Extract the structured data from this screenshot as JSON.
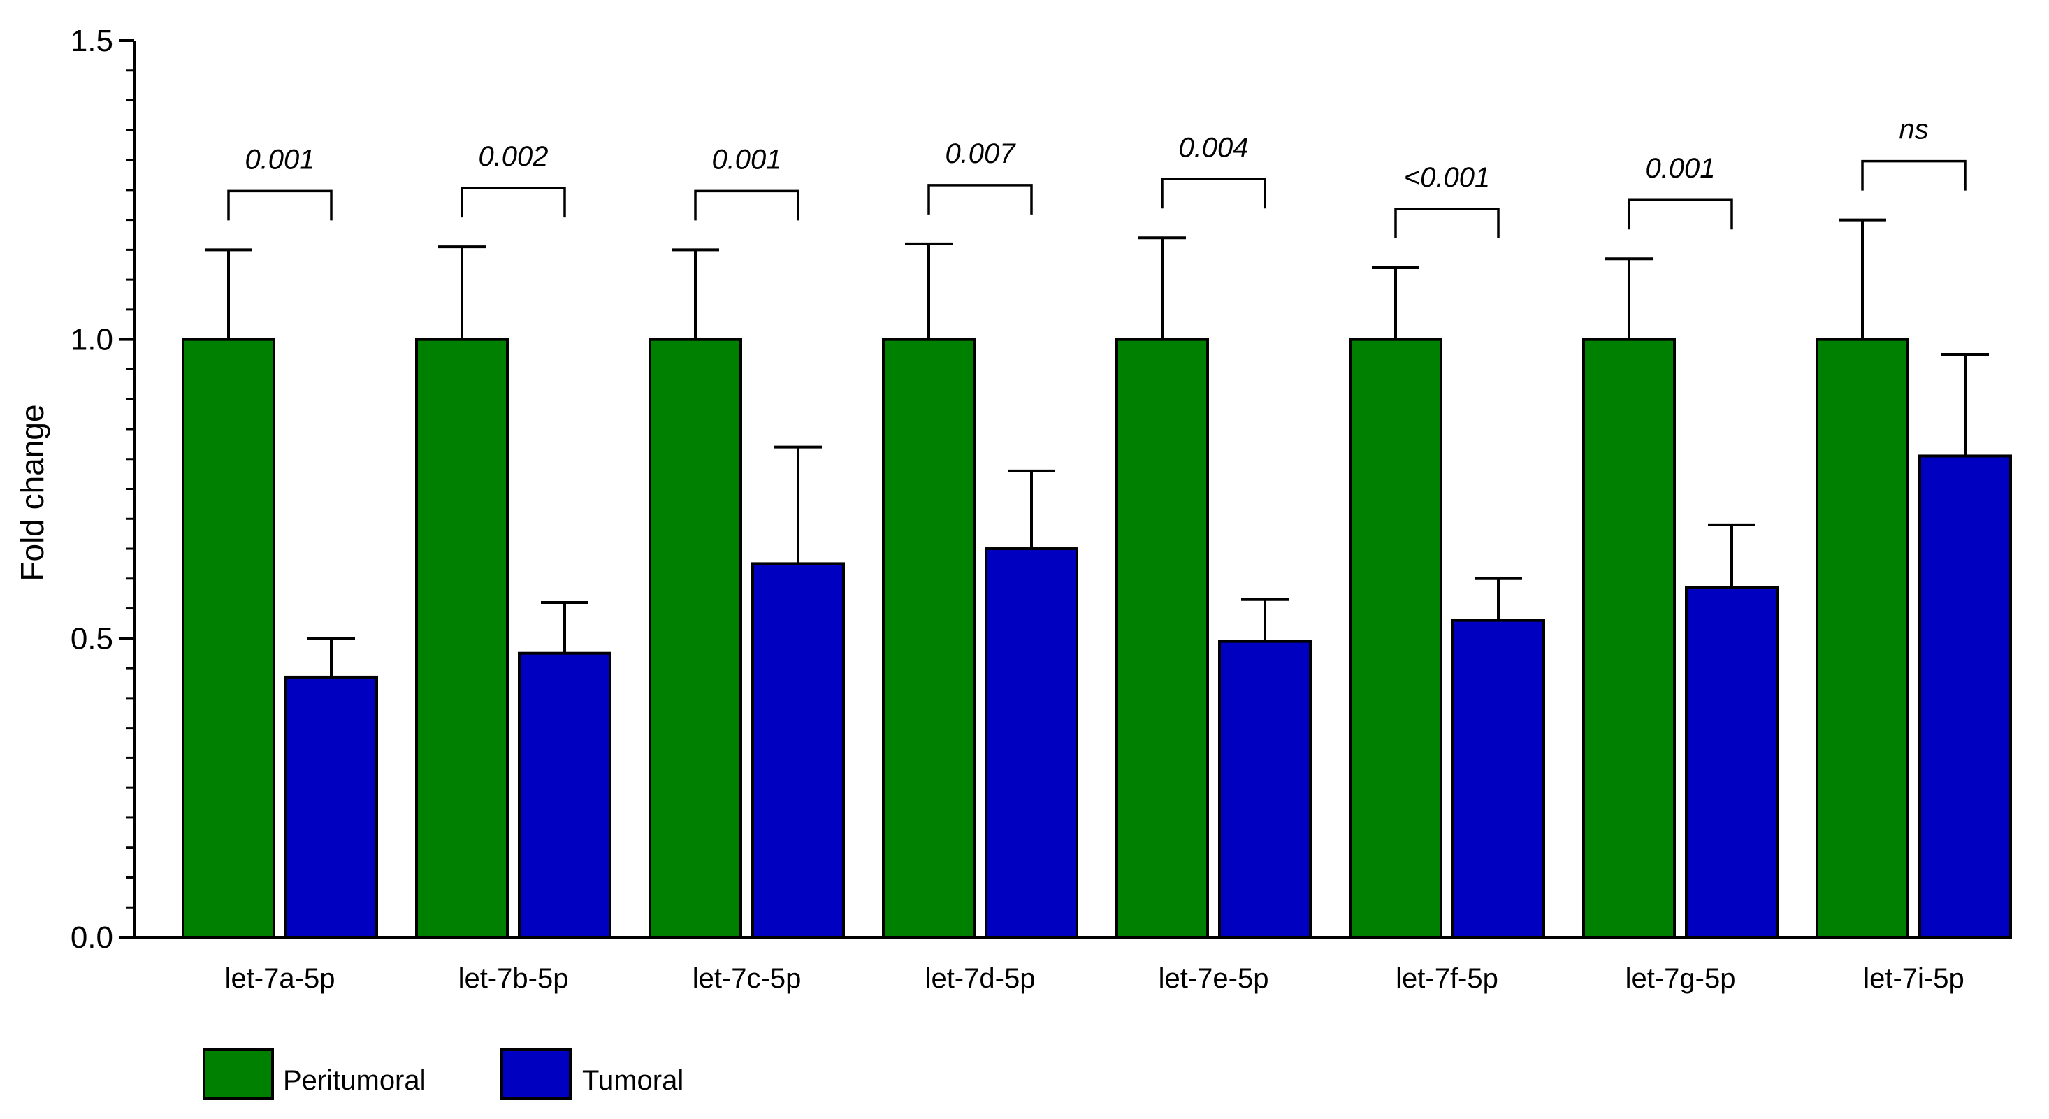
{
  "chart_data": {
    "type": "bar",
    "title": "",
    "xlabel": "",
    "ylabel": "Fold change",
    "ylim": [
      0,
      1.5
    ],
    "yticks": [
      {
        "value": 0.0,
        "label": "0.0"
      },
      {
        "value": 0.5,
        "label": "0.5"
      },
      {
        "value": 1.0,
        "label": "1.0"
      },
      {
        "value": 1.5,
        "label": "1.5"
      }
    ],
    "categories": [
      "let-7a-5p",
      "let-7b-5p",
      "let-7c-5p",
      "let-7d-5p",
      "let-7e-5p",
      "let-7f-5p",
      "let-7g-5p",
      "let-7i-5p"
    ],
    "series": [
      {
        "name": "Peritumoral",
        "color": "#008000",
        "values": [
          1.0,
          1.0,
          1.0,
          1.0,
          1.0,
          1.0,
          1.0,
          1.0
        ],
        "error_upper": [
          1.15,
          1.155,
          1.15,
          1.16,
          1.17,
          1.12,
          1.135,
          1.2
        ]
      },
      {
        "name": "Tumoral",
        "color": "#0000C0",
        "values": [
          0.435,
          0.475,
          0.625,
          0.65,
          0.495,
          0.53,
          0.585,
          0.805
        ],
        "error_upper": [
          0.5,
          0.56,
          0.82,
          0.78,
          0.565,
          0.6,
          0.69,
          0.975
        ]
      }
    ],
    "annotations": [
      "0.001",
      "0.002",
      "0.001",
      "0.007",
      "0.004",
      "<0.001",
      "0.001",
      "ns"
    ],
    "legend": [
      "Peritumoral",
      "Tumoral"
    ],
    "legend_position": "bottom-left"
  }
}
